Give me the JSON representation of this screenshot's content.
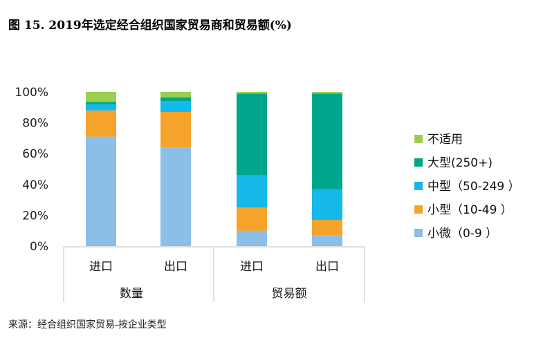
{
  "title": "图 15. 2019年选定经合组织国家贸易商和贸易额(%)",
  "source": "来源：经合组织国家贸易-按企业类型",
  "chart_data": {
    "type": "bar",
    "stacked": true,
    "y_tick_labels": [
      "0%",
      "20%",
      "40%",
      "60%",
      "80%",
      "100%"
    ],
    "ylim": [
      0,
      100
    ],
    "grid": false,
    "legend_position": "right",
    "categories": [
      "进口",
      "出口",
      "进口",
      "出口"
    ],
    "groups": [
      {
        "label": "数量",
        "categories": [
          "进口",
          "出口"
        ]
      },
      {
        "label": "贸易额",
        "categories": [
          "进口",
          "出口"
        ]
      }
    ],
    "series": [
      {
        "name": "小微（0-9 ）",
        "color": "#8cbfe8",
        "values": [
          71,
          64,
          10,
          7
        ]
      },
      {
        "name": "小型（10-49 ）",
        "color": "#f5a32a",
        "values": [
          17,
          23,
          15,
          10
        ]
      },
      {
        "name": "中型（50-249 ）",
        "color": "#15b9e8",
        "values": [
          4,
          7,
          21,
          20
        ]
      },
      {
        "name": "大型(250+)",
        "color": "#00a68c",
        "values": [
          1.5,
          2.5,
          53,
          62
        ]
      },
      {
        "name": "不适用",
        "color": "#9ccf4f",
        "values": [
          6.5,
          3.5,
          1,
          1
        ]
      }
    ],
    "legend_order": [
      "不适用",
      "大型(250+)",
      "中型（50-249 ）",
      "小型（10-49 ）",
      "小微（0-9 ）"
    ]
  }
}
